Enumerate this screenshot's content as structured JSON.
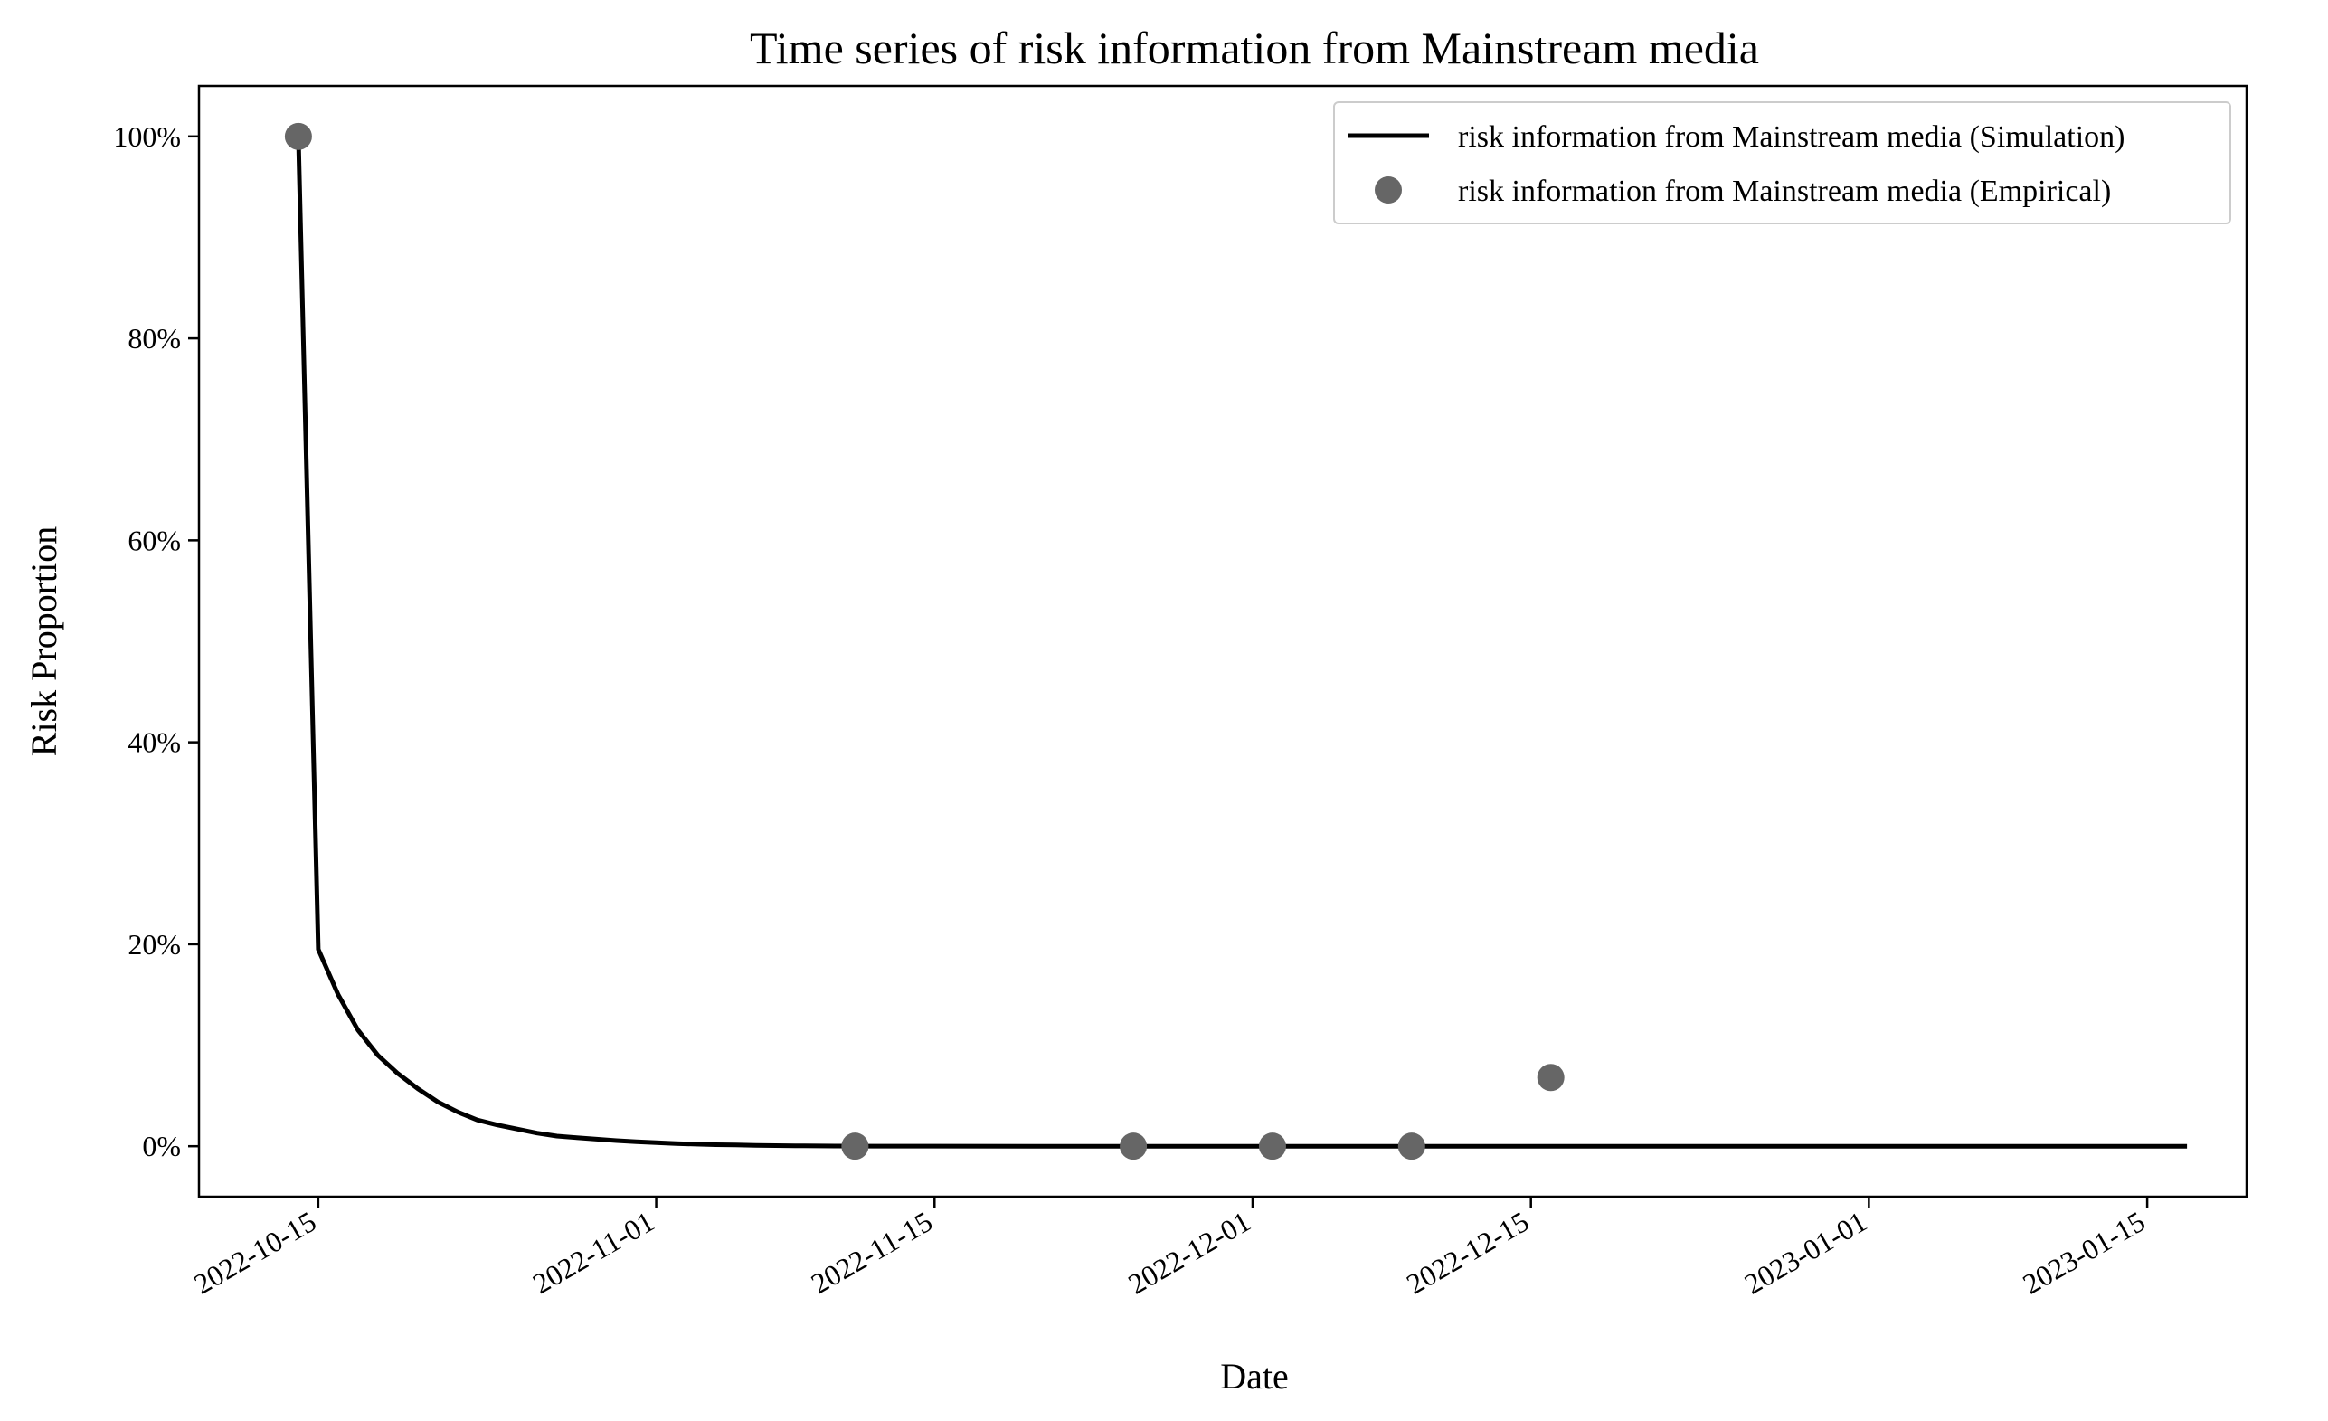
{
  "chart_data": {
    "type": "line",
    "title": "Time series of risk information from Mainstream media",
    "xlabel": "Date",
    "ylabel": "Risk Proportion",
    "x_ticks": [
      "2022-10-15",
      "2022-11-01",
      "2022-11-15",
      "2022-12-01",
      "2022-12-15",
      "2023-01-01",
      "2023-01-15"
    ],
    "y_ticks": [
      0,
      20,
      40,
      60,
      80,
      100
    ],
    "y_tick_labels": [
      "0%",
      "20%",
      "40%",
      "60%",
      "80%",
      "100%"
    ],
    "xlim": [
      "2022-10-09",
      "2023-01-20"
    ],
    "ylim": [
      -5,
      105
    ],
    "grid": false,
    "legend_position": "top-right",
    "colors": {
      "simulation": "#000000",
      "empirical": "#666666"
    },
    "series": [
      {
        "name": "risk information from Mainstream media (Simulation)",
        "kind": "line",
        "x": [
          "2022-10-14",
          "2022-10-15",
          "2022-10-16",
          "2022-10-17",
          "2022-10-18",
          "2022-10-19",
          "2022-10-20",
          "2022-10-21",
          "2022-10-22",
          "2022-10-23",
          "2022-10-24",
          "2022-10-25",
          "2022-10-26",
          "2022-10-27",
          "2022-10-28",
          "2022-10-29",
          "2022-10-30",
          "2022-10-31",
          "2022-11-01",
          "2022-11-02",
          "2022-11-03",
          "2022-11-04",
          "2022-11-05",
          "2022-11-06",
          "2022-11-07",
          "2022-11-08",
          "2022-11-10",
          "2022-11-12",
          "2022-11-15",
          "2022-11-20",
          "2022-12-01",
          "2022-12-15",
          "2023-01-01",
          "2023-01-17"
        ],
        "y": [
          100,
          19.5,
          15,
          11.5,
          9,
          7.2,
          5.7,
          4.4,
          3.4,
          2.6,
          2.1,
          1.7,
          1.3,
          1.0,
          0.85,
          0.7,
          0.55,
          0.45,
          0.35,
          0.27,
          0.2,
          0.15,
          0.12,
          0.09,
          0.06,
          0.04,
          0.02,
          0.01,
          0.005,
          0,
          0,
          0,
          0,
          0
        ]
      },
      {
        "name": "risk information from Mainstream media (Empirical)",
        "kind": "scatter",
        "x": [
          "2022-10-14",
          "2022-11-11",
          "2022-11-25",
          "2022-12-02",
          "2022-12-09",
          "2022-12-16"
        ],
        "y": [
          100,
          0,
          0,
          0,
          0,
          6.8
        ]
      }
    ]
  }
}
